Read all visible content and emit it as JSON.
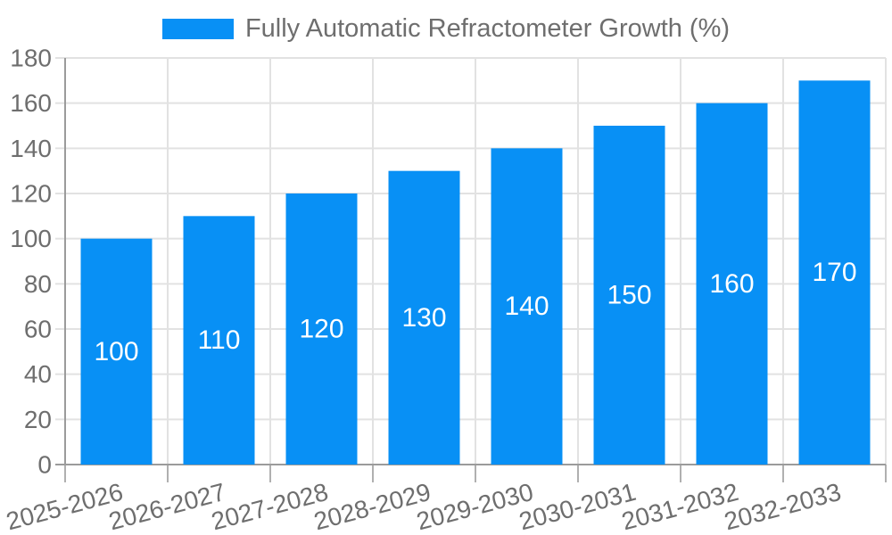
{
  "chart_data": {
    "type": "bar",
    "title": "",
    "legend": "Fully Automatic Refractometer Growth (%)",
    "legend_position": "top-center",
    "categories": [
      "2025-2026",
      "2026-2027",
      "2027-2028",
      "2028-2029",
      "2029-2030",
      "2030-2031",
      "2031-2032",
      "2032-2033"
    ],
    "values": [
      100,
      110,
      120,
      130,
      140,
      150,
      160,
      170
    ],
    "xlabel": "",
    "ylabel": "",
    "ylim": [
      0,
      180
    ],
    "ytick_step": 20,
    "grid": "horizontal and vertical light gridlines",
    "value_labels": "white, centered inside bars",
    "colors": {
      "bar": "#0890f5",
      "bar_value_label": "#ffffff",
      "axis_text": "#6e6e6e",
      "axis_line": "#9b9b9b",
      "gridline": "#e2e2e2",
      "x_tick": "#b0b0b0",
      "background": "#ffffff"
    }
  }
}
